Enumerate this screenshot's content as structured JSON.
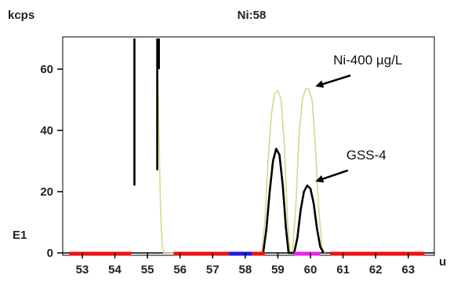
{
  "chart_data": {
    "type": "line",
    "title": "Ni:58",
    "ylabel": "kcps",
    "xlabel": "u",
    "y_secondary_label": "E1",
    "xlim": [
      52.4,
      63.8
    ],
    "ylim": [
      0,
      70
    ],
    "x_ticks": [
      53,
      54,
      55,
      56,
      57,
      58,
      59,
      60,
      61,
      62,
      63
    ],
    "y_ticks": [
      0,
      20,
      40,
      60
    ],
    "grid": false,
    "series": [
      {
        "color": "#d6d88a",
        "points": [
          [
            55.3,
            70
          ],
          [
            55.35,
            40
          ],
          [
            55.4,
            15
          ],
          [
            55.45,
            3
          ],
          [
            55.5,
            0
          ],
          [
            58.5,
            0
          ],
          [
            58.6,
            10
          ],
          [
            58.7,
            30
          ],
          [
            58.8,
            45
          ],
          [
            58.9,
            52
          ],
          [
            59.0,
            53
          ],
          [
            59.1,
            50
          ],
          [
            59.2,
            35
          ],
          [
            59.3,
            10
          ],
          [
            59.38,
            0
          ],
          [
            59.45,
            0
          ],
          [
            59.55,
            15
          ],
          [
            59.65,
            38
          ],
          [
            59.75,
            50
          ],
          [
            59.85,
            53.5
          ],
          [
            59.95,
            53.5
          ],
          [
            60.05,
            50
          ],
          [
            60.15,
            35
          ],
          [
            60.25,
            15
          ],
          [
            60.35,
            2
          ],
          [
            60.45,
            0
          ]
        ]
      },
      {
        "color": "#000000",
        "points": [
          [
            58.55,
            0
          ],
          [
            58.65,
            8
          ],
          [
            58.75,
            20
          ],
          [
            58.85,
            30
          ],
          [
            58.95,
            34
          ],
          [
            59.05,
            32
          ],
          [
            59.15,
            22
          ],
          [
            59.25,
            8
          ],
          [
            59.33,
            0
          ],
          [
            59.5,
            0
          ],
          [
            59.6,
            5
          ],
          [
            59.7,
            14
          ],
          [
            59.8,
            20
          ],
          [
            59.9,
            22
          ],
          [
            60.0,
            21
          ],
          [
            60.1,
            16
          ],
          [
            60.2,
            8
          ],
          [
            60.3,
            2
          ],
          [
            60.4,
            0
          ]
        ]
      }
    ],
    "spikes": [
      {
        "x": 54.6,
        "y_bottom": 22,
        "y_top": 70
      },
      {
        "x": 55.3,
        "y_bottom": 27,
        "y_top": 70
      },
      {
        "x": 55.35,
        "y_bottom": 60,
        "y_top": 70
      }
    ],
    "baseline_segments": [
      {
        "x0": 52.6,
        "x1": 54.5,
        "color": "#ee1111"
      },
      {
        "x0": 55.8,
        "x1": 57.5,
        "color": "#ee1111"
      },
      {
        "x0": 57.5,
        "x1": 58.2,
        "color": "#1a1adf"
      },
      {
        "x0": 58.2,
        "x1": 58.6,
        "color": "#ee1111"
      },
      {
        "x0": 59.5,
        "x1": 60.3,
        "color": "#ee22ee"
      },
      {
        "x0": 60.6,
        "x1": 63.5,
        "color": "#ee1111"
      }
    ],
    "annotations": [
      {
        "text": "Ni-400 µg/L",
        "x": 60.7,
        "y": 60,
        "arrow_to": [
          60.1,
          54
        ]
      },
      {
        "text": "GSS-4",
        "x": 61.1,
        "y": 29,
        "arrow_to": [
          60.1,
          23
        ]
      }
    ]
  }
}
